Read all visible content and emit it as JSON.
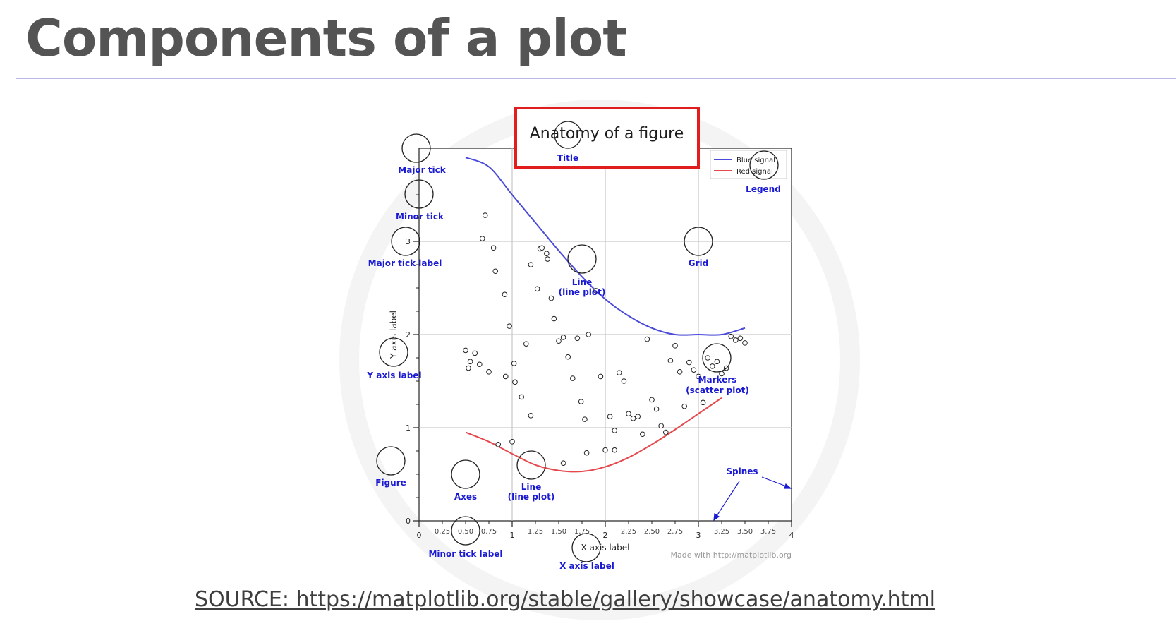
{
  "slide": {
    "title": "Components of a plot",
    "source": "SOURCE: https://matplotlib.org/stable/gallery/showcase/anatomy.html"
  },
  "figure": {
    "title": "Anatomy of a figure",
    "xlabel": "X axis label",
    "ylabel": "Y axis label",
    "credit": "Made with http://matplotlib.org",
    "legend": [
      "Blue signal",
      "Red signal"
    ],
    "major_x_ticks": [
      "0",
      "1",
      "2",
      "3",
      "4"
    ],
    "minor_x_ticks": [
      "0.25",
      "0.50",
      "0.75",
      "1.25",
      "1.50",
      "1.75",
      "2.25",
      "2.50",
      "2.75",
      "3.25",
      "3.50",
      "3.75"
    ],
    "y_ticks": [
      "0",
      "1",
      "2",
      "3"
    ],
    "colors": {
      "blue_signal": "#4b4bd9",
      "red_signal": "#e5484d",
      "annotation": "#1a1ad2",
      "highlight_box": "#e11d1d",
      "title_text": "#545454"
    }
  },
  "annotations": {
    "title": "Title",
    "major_tick": "Major tick",
    "minor_tick": "Minor tick",
    "major_tick_label": "Major tick label",
    "legend": "Legend",
    "grid": "Grid",
    "line_blue_1": "Line",
    "line_blue_2": "(line plot)",
    "y_axis_label": "Y axis label",
    "markers_1": "Markers",
    "markers_2": "(scatter plot)",
    "spines": "Spines",
    "figure": "Figure",
    "axes": "Axes",
    "line_red_1": "Line",
    "line_red_2": "(line plot)",
    "minor_tick_label": "Minor tick label",
    "x_axis_label": "X axis label"
  },
  "chart_data": {
    "type": "line",
    "title": "Anatomy of a figure",
    "xlabel": "X axis label",
    "ylabel": "Y axis label",
    "xlim": [
      0,
      4
    ],
    "ylim": [
      0,
      4
    ],
    "grid": true,
    "legend_position": "top-right",
    "series": [
      {
        "name": "Blue signal",
        "type": "line",
        "color": "#4b4bd9",
        "x": [
          0.5,
          0.75,
          1.0,
          1.25,
          1.5,
          1.75,
          2.0,
          2.25,
          2.5,
          2.75,
          3.0,
          3.25,
          3.5
        ],
        "y": [
          3.9,
          3.8,
          3.5,
          3.2,
          2.9,
          2.62,
          2.38,
          2.2,
          2.07,
          2.0,
          2.0,
          2.0,
          2.07
        ]
      },
      {
        "name": "Red signal",
        "type": "line",
        "color": "#e5484d",
        "x": [
          0.5,
          0.75,
          1.0,
          1.25,
          1.5,
          1.75,
          2.0,
          2.25,
          2.5,
          2.75,
          3.0,
          3.25
        ],
        "y": [
          0.95,
          0.85,
          0.72,
          0.6,
          0.54,
          0.53,
          0.58,
          0.68,
          0.82,
          0.98,
          1.15,
          1.32
        ]
      },
      {
        "name": "Markers",
        "type": "scatter",
        "x": [
          0.71,
          0.68,
          0.8,
          0.82,
          0.6,
          0.5,
          0.55,
          0.53,
          0.65,
          0.75,
          0.93,
          0.92,
          0.97,
          1.03,
          1.02,
          1.15,
          1.1,
          1.2,
          1.2,
          1.27,
          1.3,
          1.32,
          1.38,
          1.37,
          1.42,
          1.5,
          1.45,
          1.55,
          1.6,
          1.65,
          1.7,
          1.74,
          1.78,
          1.82,
          1.9,
          1.95,
          2.05,
          2.1,
          2.15,
          2.2,
          2.25,
          2.3,
          2.35,
          2.4,
          2.45,
          2.5,
          2.55,
          2.6,
          2.65,
          2.7,
          2.75,
          2.8,
          2.85,
          2.9,
          2.95,
          3.0,
          3.05,
          3.1,
          3.15,
          3.2,
          3.25,
          3.3,
          3.35,
          3.4,
          3.45,
          3.5,
          1.55,
          1.8,
          2.0,
          2.1,
          0.85,
          1.0
        ],
        "y": [
          3.28,
          3.03,
          2.93,
          2.68,
          1.8,
          1.83,
          1.71,
          1.64,
          1.68,
          1.6,
          1.55,
          2.43,
          2.09,
          1.49,
          1.69,
          1.9,
          1.33,
          1.13,
          2.75,
          2.49,
          2.92,
          2.93,
          2.81,
          2.87,
          2.39,
          1.93,
          2.17,
          1.97,
          1.76,
          1.53,
          1.96,
          1.28,
          1.09,
          2.0,
          2.47,
          1.55,
          1.12,
          0.97,
          1.59,
          1.5,
          1.15,
          1.1,
          1.12,
          0.93,
          1.95,
          1.3,
          1.2,
          1.02,
          0.95,
          1.72,
          1.88,
          1.6,
          1.23,
          1.7,
          1.62,
          1.55,
          1.27,
          1.75,
          1.66,
          1.71,
          1.58,
          1.64,
          1.98,
          1.94,
          1.96,
          1.91,
          0.62,
          0.73,
          0.76,
          0.76,
          0.82,
          0.85
        ]
      }
    ]
  }
}
